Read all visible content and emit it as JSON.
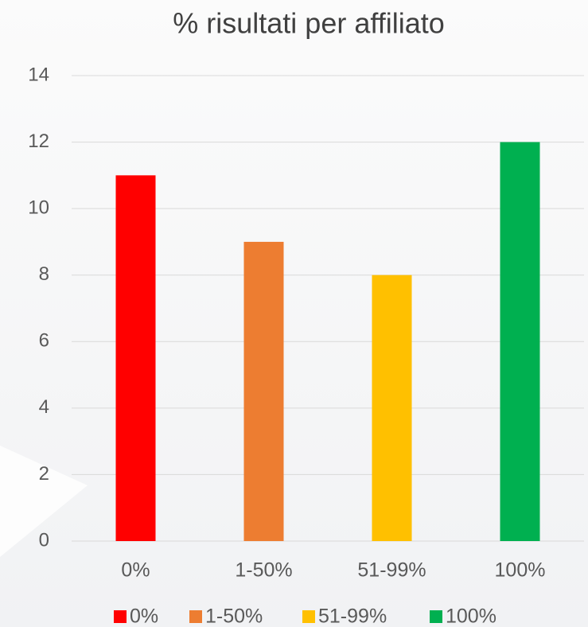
{
  "chart_data": {
    "type": "bar",
    "title": "% risultati per affiliato",
    "categories": [
      "0%",
      "1-50%",
      "51-99%",
      "100%"
    ],
    "values": [
      11,
      9,
      8,
      12
    ],
    "colors": [
      "#ff0000",
      "#ed7d31",
      "#ffc000",
      "#00b050"
    ],
    "ylim": [
      0,
      14
    ],
    "yticks": [
      0,
      2,
      4,
      6,
      8,
      10,
      12,
      14
    ],
    "grid": true,
    "legend": "bottom"
  }
}
